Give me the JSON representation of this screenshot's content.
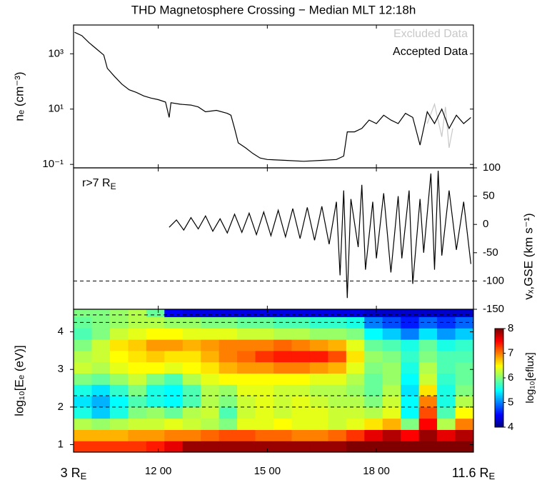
{
  "title": "THD Magnetosphere Crossing − Median MLT 12:18h",
  "chart_data": [
    {
      "type": "line",
      "ylabel": "nₑ (cm⁻³)",
      "log_y": true,
      "xlim": [
        9.67,
        20.67
      ],
      "ylim": [
        0.075,
        11000
      ],
      "yticks": [
        {
          "value": 0.1,
          "label": "10⁻¹"
        },
        {
          "value": 10,
          "label": "10¹"
        },
        {
          "value": 1000,
          "label": "10³"
        }
      ],
      "legend": "top-right",
      "series": [
        {
          "name": "Excluded Data",
          "color": "#c8c8c8",
          "x": [
            19.4,
            19.6,
            19.8,
            19.9,
            20.0,
            20.1
          ],
          "values": [
            3,
            15,
            1,
            12,
            0.4,
            2
          ]
        },
        {
          "name": "Accepted Data",
          "color": "#000000",
          "x": [
            9.7,
            9.9,
            10.1,
            10.3,
            10.5,
            10.6,
            10.8,
            11.0,
            11.2,
            11.4,
            11.6,
            11.8,
            12.0,
            12.2,
            12.3,
            12.35,
            12.6,
            12.9,
            13.1,
            13.3,
            13.6,
            13.9,
            14.0,
            14.1,
            14.2,
            14.4,
            14.6,
            14.8,
            15.0,
            15.5,
            16.0,
            16.5,
            16.9,
            17.1,
            17.2,
            17.4,
            17.6,
            17.8,
            18.0,
            18.2,
            18.4,
            18.6,
            18.8,
            19.0,
            19.2,
            19.4,
            19.6,
            19.8,
            20.0,
            20.2,
            20.4,
            20.6
          ],
          "values": [
            6000,
            4500,
            2500,
            1500,
            900,
            300,
            150,
            80,
            50,
            40,
            30,
            25,
            22,
            18,
            5,
            17,
            15,
            14,
            12,
            8,
            9,
            7,
            6,
            2,
            0.6,
            0.4,
            0.25,
            0.17,
            0.15,
            0.14,
            0.13,
            0.14,
            0.15,
            0.2,
            1.5,
            1.5,
            2,
            4,
            3,
            6,
            4,
            3,
            7,
            5,
            0.5,
            8,
            3,
            10,
            2,
            6,
            3,
            5
          ]
        }
      ]
    },
    {
      "type": "line",
      "ylabel": "vₓ,GSE (km s⁻¹)",
      "annotation": "r>7 R",
      "annotation_sub": "E",
      "xlim": [
        9.67,
        20.67
      ],
      "ylim": [
        -150,
        100
      ],
      "yticks": [
        -150,
        -100,
        -50,
        0,
        50,
        100
      ],
      "hlines": [
        -100
      ],
      "series": [
        {
          "color": "#000000",
          "x": [
            12.3,
            12.5,
            12.7,
            12.9,
            13.1,
            13.3,
            13.5,
            13.7,
            13.9,
            14.1,
            14.3,
            14.5,
            14.7,
            14.9,
            15.1,
            15.3,
            15.5,
            15.7,
            15.9,
            16.1,
            16.3,
            16.5,
            16.7,
            16.9,
            17.0,
            17.1,
            17.2,
            17.3,
            17.5,
            17.6,
            17.7,
            17.9,
            18.0,
            18.2,
            18.4,
            18.6,
            18.7,
            18.9,
            19.0,
            19.2,
            19.3,
            19.5,
            19.6,
            19.7,
            19.8,
            20.0,
            20.2,
            20.4,
            20.6
          ],
          "values": [
            -5,
            8,
            -10,
            12,
            -8,
            15,
            -12,
            10,
            -15,
            18,
            -14,
            20,
            -18,
            22,
            -20,
            25,
            -22,
            28,
            -25,
            30,
            -28,
            32,
            -35,
            40,
            -90,
            60,
            -130,
            45,
            -40,
            70,
            -80,
            40,
            -60,
            55,
            -85,
            50,
            -60,
            60,
            -105,
            45,
            -50,
            90,
            -80,
            95,
            -55,
            60,
            -45,
            40,
            -70
          ]
        }
      ]
    },
    {
      "type": "heatmap",
      "ylabel": "log₁₀[Eₑ (eV)]",
      "colorbar_label": "log₁₀[eflux]",
      "colormap": "jet",
      "clim": [
        4,
        8
      ],
      "cticks": [
        4,
        5,
        6,
        7,
        8
      ],
      "xlim": [
        9.67,
        20.67
      ],
      "ylim": [
        0.8,
        4.6
      ],
      "yticks": [
        1,
        2,
        3,
        4
      ],
      "xticks": [
        {
          "value": 12,
          "label": "12 00"
        },
        {
          "value": 15,
          "label": "15 00"
        },
        {
          "value": 18,
          "label": "18 00"
        }
      ],
      "x_end_labels": [
        {
          "label": "3 R",
          "sub": "E"
        },
        {
          "label": "11.6 R",
          "sub": "E"
        }
      ],
      "hlines": [
        4.45,
        4.25,
        2.3,
        2.0
      ],
      "xbins": [
        9.67,
        10.17,
        10.67,
        11.17,
        11.67,
        12.17,
        12.67,
        13.17,
        13.67,
        14.17,
        14.67,
        15.17,
        15.67,
        16.17,
        16.67,
        17.17,
        17.67,
        18.17,
        18.67,
        19.17,
        19.67,
        20.17,
        20.67
      ],
      "ybins": [
        0.8,
        1.1,
        1.4,
        1.7,
        2.0,
        2.3,
        2.6,
        2.9,
        3.2,
        3.5,
        3.8,
        4.1,
        4.4,
        4.6
      ],
      "z": [
        [
          7.3,
          7.3,
          7.3,
          7.3,
          7.4,
          7.6,
          7.9,
          7.9,
          7.9,
          7.9,
          7.9,
          7.9,
          7.9,
          7.9,
          7.9,
          8,
          8,
          8,
          8,
          8,
          8,
          8
        ],
        [
          6.8,
          6.8,
          6.8,
          6.9,
          6.9,
          7.0,
          7.0,
          7.1,
          7.2,
          7.2,
          7.1,
          7.1,
          7.0,
          7.0,
          7.1,
          7.3,
          7.6,
          7.8,
          7.5,
          7.9,
          7.6,
          7.8
        ],
        [
          6.2,
          6.1,
          6.2,
          6.3,
          6.3,
          6.4,
          6.3,
          6.2,
          6.0,
          6.4,
          6.4,
          6.5,
          6.4,
          6.4,
          6.3,
          6.4,
          6.6,
          6.8,
          6.0,
          7.5,
          6.2,
          7.0
        ],
        [
          5.6,
          5.3,
          5.6,
          6.0,
          6.1,
          5.9,
          6.2,
          6.3,
          5.8,
          6.3,
          6.4,
          6.3,
          6.4,
          6.4,
          6.3,
          6.3,
          6.2,
          6.4,
          5.5,
          7.2,
          5.8,
          6.5
        ],
        [
          5.4,
          5.2,
          5.5,
          5.8,
          5.6,
          5.5,
          5.8,
          6.2,
          6.0,
          6.3,
          6.4,
          6.3,
          6.4,
          6.3,
          6.2,
          6.2,
          6.0,
          6.3,
          5.5,
          7.0,
          5.6,
          6.2
        ],
        [
          5.6,
          5.4,
          5.7,
          6.0,
          5.6,
          5.5,
          5.8,
          6.2,
          6.1,
          6.4,
          6.4,
          6.3,
          6.3,
          6.2,
          6.2,
          6.1,
          5.9,
          6.2,
          5.4,
          6.6,
          5.6,
          6.0
        ],
        [
          6.0,
          5.9,
          6.1,
          6.3,
          6.0,
          5.8,
          6.2,
          6.4,
          6.5,
          6.5,
          6.5,
          6.5,
          6.5,
          6.4,
          6.4,
          6.2,
          5.9,
          6.1,
          5.5,
          6.3,
          5.7,
          5.9
        ],
        [
          6.3,
          6.2,
          6.4,
          6.5,
          6.5,
          6.4,
          6.5,
          6.6,
          6.8,
          6.9,
          6.9,
          7.0,
          7.0,
          6.9,
          6.8,
          6.4,
          6.0,
          6.1,
          5.6,
          6.2,
          5.8,
          5.9
        ],
        [
          6.2,
          6.3,
          6.5,
          6.6,
          6.7,
          6.6,
          6.6,
          6.8,
          7.0,
          7.1,
          7.3,
          7.4,
          7.4,
          7.4,
          7.2,
          6.6,
          6.1,
          6.0,
          5.7,
          6.0,
          5.8,
          5.8
        ],
        [
          6.0,
          6.3,
          6.6,
          6.7,
          6.9,
          6.9,
          6.8,
          6.9,
          7.0,
          7.0,
          7.0,
          7.1,
          7.0,
          6.9,
          6.8,
          6.4,
          5.9,
          5.8,
          5.6,
          5.9,
          5.6,
          5.7
        ],
        [
          5.8,
          6.0,
          6.3,
          6.4,
          6.5,
          6.5,
          6.4,
          6.4,
          6.4,
          6.3,
          6.3,
          6.2,
          6.2,
          6.1,
          6.1,
          6.0,
          5.5,
          5.3,
          5.0,
          5.4,
          5.1,
          5.3
        ],
        [
          5.9,
          6.0,
          6.1,
          6.2,
          6.2,
          6.1,
          6.1,
          6.0,
          6.0,
          5.9,
          5.9,
          5.8,
          5.8,
          5.7,
          5.7,
          5.6,
          5.0,
          4.8,
          4.6,
          4.9,
          4.7,
          4.9
        ],
        [
          6.0,
          6.0,
          6.1,
          6.2,
          5.9,
          4.5,
          4.4,
          4.4,
          4.4,
          4.4,
          4.4,
          4.4,
          4.4,
          4.4,
          4.4,
          4.4,
          4.3,
          4.3,
          4.3,
          4.3,
          4.3,
          4.3
        ]
      ]
    }
  ]
}
